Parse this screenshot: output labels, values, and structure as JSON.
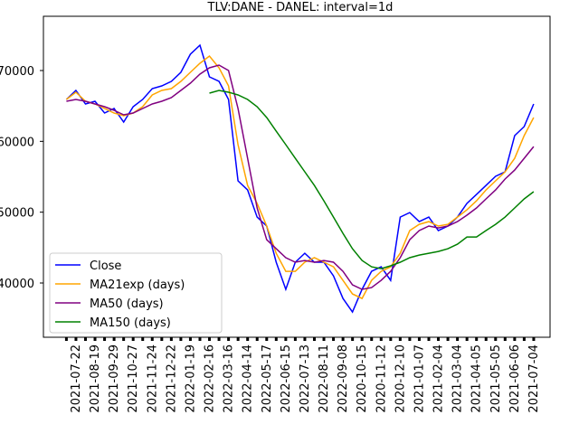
{
  "chart_data": {
    "type": "line",
    "title": "TLV:DANE - DANEL: interval=1d",
    "categories": [
      null,
      "2021-07-22",
      null,
      "2021-08-19",
      null,
      "2021-09-29",
      null,
      "2021-10-27",
      null,
      "2021-11-24",
      null,
      "2021-12-22",
      null,
      "2022-01-19",
      null,
      "2022-02-16",
      null,
      "2022-03-16",
      null,
      "2022-04-14",
      null,
      "2022-05-17",
      null,
      "2022-06-15",
      null,
      "2022-07-13",
      null,
      "2022-08-11",
      null,
      "2022-09-08",
      null,
      "2020-10-15",
      null,
      "2020-11-12",
      null,
      "2020-12-10",
      null,
      "2021-01-07",
      null,
      "2021-02-04",
      null,
      "2021-03-04",
      null,
      "2021-04-05",
      null,
      "2021-05-05",
      null,
      "2021-06-06",
      null,
      "2021-07-04"
    ],
    "series": [
      {
        "name": "Close",
        "color": "#0000ff",
        "values": [
          65910,
          67190,
          65280,
          65660,
          64000,
          64640,
          62720,
          64890,
          65910,
          67450,
          67830,
          68470,
          69740,
          72300,
          73570,
          69110,
          68470,
          65910,
          54420,
          53140,
          49310,
          48040,
          42930,
          39100,
          42930,
          44200,
          42930,
          42930,
          41010,
          37820,
          35900,
          39100,
          41650,
          42290,
          40370,
          49310,
          49950,
          48670,
          49310,
          47400,
          48040,
          49310,
          51230,
          52500,
          53780,
          55060,
          55700,
          60810,
          62080,
          65280
        ]
      },
      {
        "name": "MA21exp (days)",
        "color": "#ffa500",
        "values": [
          65910,
          66940,
          65660,
          65280,
          64640,
          64000,
          63620,
          64000,
          64890,
          66550,
          67190,
          67450,
          68470,
          69740,
          71020,
          72040,
          70380,
          67830,
          59530,
          53780,
          51230,
          48040,
          44200,
          41650,
          41650,
          42930,
          43570,
          42930,
          42290,
          40370,
          38460,
          37820,
          40370,
          41650,
          42290,
          44200,
          47400,
          48290,
          48670,
          48040,
          48290,
          49310,
          50330,
          51610,
          53140,
          54420,
          55700,
          57610,
          60810,
          63360
        ]
      },
      {
        "name": "MA50 (days)",
        "color": "#800080",
        "values": [
          65660,
          65910,
          65660,
          65280,
          64890,
          64380,
          63740,
          64000,
          64640,
          65280,
          65660,
          66170,
          67190,
          68210,
          69490,
          70380,
          70770,
          70000,
          64640,
          57610,
          50590,
          46120,
          44840,
          43570,
          42930,
          43180,
          42930,
          43180,
          42930,
          41650,
          39740,
          39100,
          39350,
          40370,
          41650,
          43570,
          46120,
          47400,
          48040,
          47780,
          48040,
          48670,
          49570,
          50590,
          51870,
          53140,
          54680,
          55950,
          57610,
          59270
        ]
      },
      {
        "name": "MA150 (days)",
        "color": "#008000",
        "values": [
          null,
          null,
          null,
          null,
          null,
          null,
          null,
          null,
          null,
          null,
          null,
          null,
          null,
          null,
          null,
          66810,
          67190,
          66940,
          66550,
          65910,
          64890,
          63360,
          61440,
          59530,
          57610,
          55700,
          53780,
          51610,
          49310,
          47010,
          44840,
          43180,
          42290,
          42030,
          42420,
          42930,
          43570,
          43950,
          44200,
          44460,
          44840,
          45480,
          46500,
          46500,
          47400,
          48290,
          49310,
          50590,
          51870,
          52890
        ]
      }
    ],
    "ylim": [
      32340,
      77660
    ],
    "yticks": [
      {
        "value": 40000,
        "label": "40000"
      },
      {
        "value": 50000,
        "label": "50000"
      },
      {
        "value": 60000,
        "label": "60000"
      },
      {
        "value": 70000,
        "label": "70000"
      }
    ],
    "legend": "lower left"
  }
}
